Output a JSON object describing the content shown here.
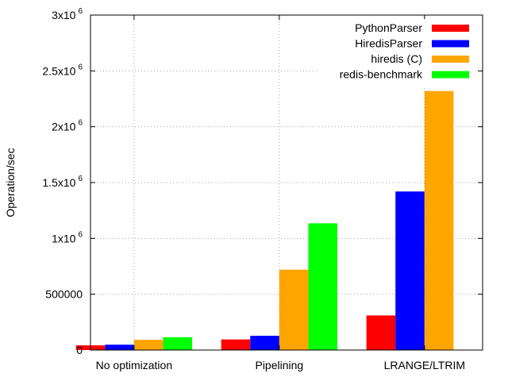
{
  "chart_data": {
    "type": "bar",
    "title": "",
    "xlabel": "",
    "ylabel": "Operation/sec",
    "ylim": [
      0,
      3000000
    ],
    "categories": [
      "No optimization",
      "Pipelining",
      "LRANGE/LTRIM"
    ],
    "y_ticks": [
      {
        "value": 0,
        "mantissa": "0",
        "exp": ""
      },
      {
        "value": 500000,
        "mantissa": "500000",
        "exp": ""
      },
      {
        "value": 1000000,
        "mantissa": "1x10",
        "exp": "6"
      },
      {
        "value": 1500000,
        "mantissa": "1.5x10",
        "exp": "6"
      },
      {
        "value": 2000000,
        "mantissa": "2x10",
        "exp": "6"
      },
      {
        "value": 2500000,
        "mantissa": "2.5x10",
        "exp": "6"
      },
      {
        "value": 3000000,
        "mantissa": "3x10",
        "exp": "6"
      }
    ],
    "series": [
      {
        "name": "PythonParser",
        "color": "#ff0000",
        "values": [
          42000,
          95000,
          310000
        ]
      },
      {
        "name": "HiredisParser",
        "color": "#0000ff",
        "values": [
          48000,
          128000,
          1420000
        ]
      },
      {
        "name": "hiredis (C)",
        "color": "#ffa500",
        "values": [
          92000,
          720000,
          2320000
        ]
      },
      {
        "name": "redis-benchmark",
        "color": "#00ff00",
        "values": [
          115000,
          1135000,
          null
        ]
      }
    ],
    "grid": true,
    "legend_position": "top-right"
  }
}
